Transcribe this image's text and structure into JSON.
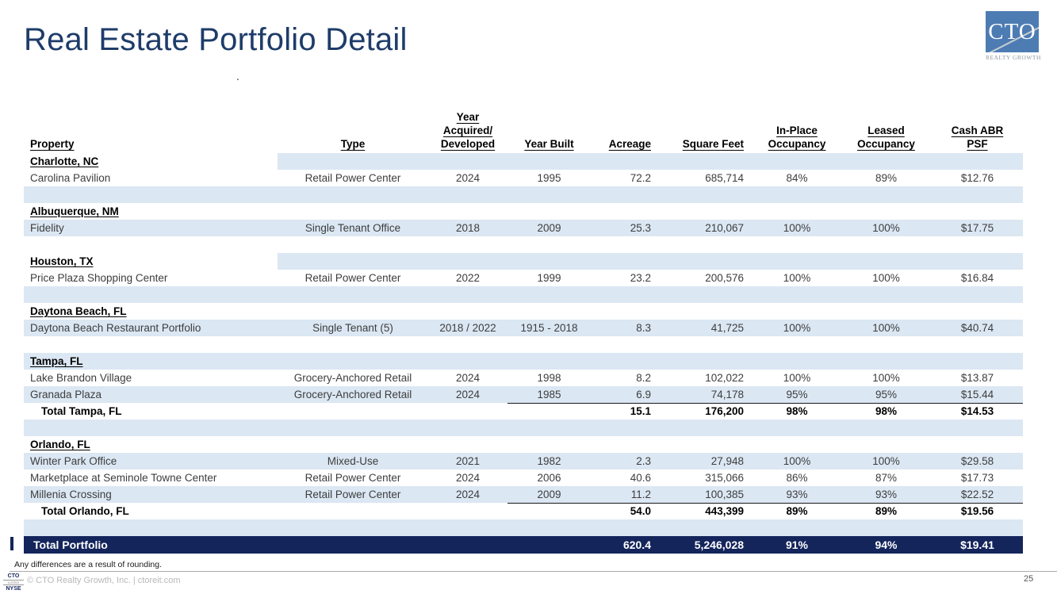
{
  "slide": {
    "title": "Real Estate Portfolio Detail",
    "stray_dot": ".",
    "page_number": "25",
    "footnote": "Any differences are a result of rounding.",
    "footer_text": "© CTO Realty Growth, Inc. | ctoreit.com",
    "logo": {
      "acronym": "CTO",
      "caption": "REALTY GROWTH"
    },
    "listing_badge": {
      "top": "CTO",
      "middle": "LISTED",
      "bottom": "NYSE"
    }
  },
  "colors": {
    "accent_navy": "#14255c",
    "band_blue": "#dbe7f3",
    "title_blue": "#1e3c69",
    "logo_blue": "#4d7cb3"
  },
  "table": {
    "columns": [
      {
        "id": "property",
        "label": "Property"
      },
      {
        "id": "type",
        "label": "Type"
      },
      {
        "id": "year_acquired_developed",
        "label": "Year\nAcquired/\nDeveloped"
      },
      {
        "id": "year_built",
        "label": "Year Built"
      },
      {
        "id": "acreage",
        "label": "Acreage"
      },
      {
        "id": "square_feet",
        "label": "Square Feet"
      },
      {
        "id": "in_place_occupancy",
        "label": "In-Place\nOccupancy"
      },
      {
        "id": "leased_occupancy",
        "label": "Leased\nOccupancy"
      },
      {
        "id": "cash_abr_psf",
        "label": "Cash ABR\nPSF"
      }
    ],
    "rows": [
      {
        "kind": "section",
        "shade": "split",
        "label": "Charlotte, NC"
      },
      {
        "kind": "data",
        "shade": "white",
        "cells": [
          "Carolina Pavilion",
          "Retail Power Center",
          "2024",
          "1995",
          "72.2",
          "685,714",
          "84%",
          "89%",
          "$12.76"
        ]
      },
      {
        "kind": "spacer",
        "shade": "blue"
      },
      {
        "kind": "section",
        "shade": "white",
        "label": "Albuquerque, NM"
      },
      {
        "kind": "data",
        "shade": "blue",
        "cells": [
          "Fidelity",
          "Single Tenant Office",
          "2018",
          "2009",
          "25.3",
          "210,067",
          "100%",
          "100%",
          "$17.75"
        ]
      },
      {
        "kind": "spacer",
        "shade": "white"
      },
      {
        "kind": "section",
        "shade": "split",
        "label": "Houston, TX"
      },
      {
        "kind": "data",
        "shade": "white",
        "cells": [
          "Price Plaza Shopping Center",
          "Retail Power Center",
          "2022",
          "1999",
          "23.2",
          "200,576",
          "100%",
          "100%",
          "$16.84"
        ]
      },
      {
        "kind": "spacer",
        "shade": "blue"
      },
      {
        "kind": "section",
        "shade": "white",
        "label": "Daytona Beach, FL"
      },
      {
        "kind": "data",
        "shade": "blue",
        "cells": [
          "Daytona Beach Restaurant Portfolio",
          "Single Tenant (5)",
          "2018 / 2022",
          "1915 - 2018",
          "8.3",
          "41,725",
          "100%",
          "100%",
          "$40.74"
        ]
      },
      {
        "kind": "spacer",
        "shade": "white"
      },
      {
        "kind": "section",
        "shade": "blue",
        "label": "Tampa, FL"
      },
      {
        "kind": "data",
        "shade": "white",
        "cells": [
          "Lake Brandon Village",
          "Grocery-Anchored Retail",
          "2024",
          "1998",
          "8.2",
          "102,022",
          "100%",
          "100%",
          "$13.87"
        ]
      },
      {
        "kind": "data",
        "shade": "blue",
        "rule": true,
        "cells": [
          "Granada Plaza",
          "Grocery-Anchored Retail",
          "2024",
          "1985",
          "6.9",
          "74,178",
          "95%",
          "95%",
          "$15.44"
        ]
      },
      {
        "kind": "total",
        "shade": "white",
        "cells": [
          "Total Tampa, FL",
          "",
          "",
          "",
          "15.1",
          "176,200",
          "98%",
          "98%",
          "$14.53"
        ]
      },
      {
        "kind": "spacer",
        "shade": "blue"
      },
      {
        "kind": "section",
        "shade": "white",
        "label": "Orlando, FL"
      },
      {
        "kind": "data",
        "shade": "blue",
        "cells": [
          "Winter Park Office",
          "Mixed-Use",
          "2021",
          "1982",
          "2.3",
          "27,948",
          "100%",
          "100%",
          "$29.58"
        ]
      },
      {
        "kind": "data",
        "shade": "white",
        "cells": [
          "Marketplace at Seminole Towne Center",
          "Retail Power Center",
          "2024",
          "2006",
          "40.6",
          "315,066",
          "86%",
          "87%",
          "$17.73"
        ]
      },
      {
        "kind": "data",
        "shade": "blue",
        "rule": true,
        "cells": [
          "Millenia Crossing",
          "Retail Power Center",
          "2024",
          "2009",
          "11.2",
          "100,385",
          "93%",
          "93%",
          "$22.52"
        ]
      },
      {
        "kind": "total",
        "shade": "white",
        "cells": [
          "Total Orlando, FL",
          "",
          "",
          "",
          "54.0",
          "443,399",
          "89%",
          "89%",
          "$19.56"
        ]
      },
      {
        "kind": "spacer",
        "shade": "blue"
      },
      {
        "kind": "grand",
        "shade": "navy",
        "cells": [
          "Total Portfolio",
          "",
          "",
          "",
          "620.4",
          "5,246,028",
          "91%",
          "94%",
          "$19.41"
        ]
      }
    ]
  }
}
